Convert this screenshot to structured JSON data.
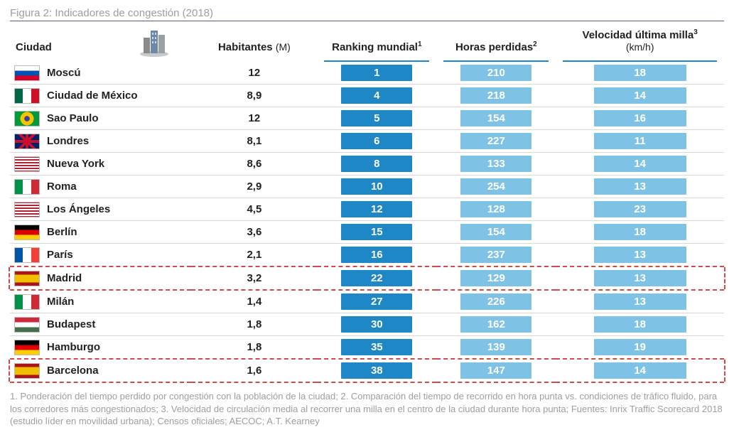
{
  "title": "Figura 2: Indicadores de congestión (2018)",
  "columns": {
    "city": "Ciudad",
    "pop": "Habitantes",
    "pop_unit": "(M)",
    "rank": "Ranking mundial",
    "rank_sup": "1",
    "hours": "Horas perdidas",
    "hours_sup": "2",
    "vel": "Velocidad última milla",
    "vel_sup": "3",
    "vel_unit": "(km/h)"
  },
  "colors": {
    "header_underline": "#1e88c7",
    "title_underline": "#6a4c93",
    "badge_dark": "#1e88c7",
    "badge_light": "#7ec3e6",
    "row_border": "#d8d8d8",
    "highlight_border": "#d04a4a",
    "title_text": "#9e9e9e",
    "footnote_text": "#9e9e9e",
    "text": "#222222",
    "background": "#ffffff"
  },
  "badge_widths": {
    "rank": 100,
    "hours": 100,
    "vel": 130
  },
  "flags": {
    "ru": "linear-gradient(to bottom,#fff 0 33%,#0052b4 33% 66%,#d80027 66% 100%)",
    "mx": "linear-gradient(to right,#006847 0 33%,#fff 33% 66%,#ce1126 66% 100%)",
    "br": "radial-gradient(circle at 50% 50%,#3e4095 0 18%,#f8c300 18% 45%,transparent 45%),linear-gradient(#009b3a,#009b3a)",
    "gb": "linear-gradient(45deg,transparent 45%,#c8102e 45% 55%,transparent 55%),linear-gradient(-45deg,transparent 45%,#c8102e 45% 55%,transparent 55%),linear-gradient(to bottom,transparent 40%,#c8102e 40% 60%,transparent 60%),linear-gradient(to right,transparent 44%,#c8102e 44% 56%,transparent 56%),linear-gradient(#012169,#012169)",
    "us": "repeating-linear-gradient(to bottom,#b22234 0 2px,#fff 2px 4px)",
    "it": "linear-gradient(to right,#009246 0 33%,#fff 33% 66%,#ce2b37 66% 100%)",
    "de": "linear-gradient(to bottom,#000 0 33%,#dd0000 33% 66%,#ffce00 66% 100%)",
    "fr": "linear-gradient(to right,#0055a4 0 33%,#fff 33% 66%,#ef4135 66% 100%)",
    "es": "linear-gradient(to bottom,#aa151b 0 25%,#f1bf00 25% 75%,#aa151b 75% 100%)",
    "hu": "linear-gradient(to bottom,#cd2a3e 0 33%,#fff 33% 66%,#436f4d 66% 100%)"
  },
  "rows": [
    {
      "flag": "ru",
      "city": "Moscú",
      "pop": "12",
      "rank": "1",
      "hours": "210",
      "vel": "18",
      "highlight": false
    },
    {
      "flag": "mx",
      "city": "Ciudad de México",
      "pop": "8,9",
      "rank": "4",
      "hours": "218",
      "vel": "14",
      "highlight": false
    },
    {
      "flag": "br",
      "city": "Sao Paulo",
      "pop": "12",
      "rank": "5",
      "hours": "154",
      "vel": "16",
      "highlight": false
    },
    {
      "flag": "gb",
      "city": "Londres",
      "pop": "8,1",
      "rank": "6",
      "hours": "227",
      "vel": "11",
      "highlight": false
    },
    {
      "flag": "us",
      "city": "Nueva York",
      "pop": "8,6",
      "rank": "8",
      "hours": "133",
      "vel": "14",
      "highlight": false
    },
    {
      "flag": "it",
      "city": "Roma",
      "pop": "2,9",
      "rank": "10",
      "hours": "254",
      "vel": "13",
      "highlight": false
    },
    {
      "flag": "us",
      "city": "Los Ángeles",
      "pop": "4,5",
      "rank": "12",
      "hours": "128",
      "vel": "23",
      "highlight": false
    },
    {
      "flag": "de",
      "city": "Berlín",
      "pop": "3,6",
      "rank": "15",
      "hours": "154",
      "vel": "18",
      "highlight": false
    },
    {
      "flag": "fr",
      "city": "París",
      "pop": "2,1",
      "rank": "16",
      "hours": "237",
      "vel": "13",
      "highlight": false
    },
    {
      "flag": "es",
      "city": "Madrid",
      "pop": "3,2",
      "rank": "22",
      "hours": "129",
      "vel": "13",
      "highlight": true
    },
    {
      "flag": "it",
      "city": "Milán",
      "pop": "1,4",
      "rank": "27",
      "hours": "226",
      "vel": "13",
      "highlight": false
    },
    {
      "flag": "hu",
      "city": "Budapest",
      "pop": "1,8",
      "rank": "30",
      "hours": "162",
      "vel": "18",
      "highlight": false
    },
    {
      "flag": "de",
      "city": "Hamburgo",
      "pop": "1,8",
      "rank": "35",
      "hours": "139",
      "vel": "19",
      "highlight": false
    },
    {
      "flag": "es",
      "city": "Barcelona",
      "pop": "1,6",
      "rank": "38",
      "hours": "147",
      "vel": "14",
      "highlight": true
    }
  ],
  "footnotes": "1. Ponderación del tiempo perdido por congestión con la población de la ciudad; 2. Comparación del tiempo de recorrido en hora punta vs. condiciones de tráfico fluido, para los corredores más congestionados; 3. Velocidad de circulación media al recorrer una milla en el centro de la ciudad durante hora punta; Fuentes: Inrix Traffic Scorecard 2018 (estudio líder en movilidad urbana); Censos oficiales; AECOC; A.T. Kearney"
}
